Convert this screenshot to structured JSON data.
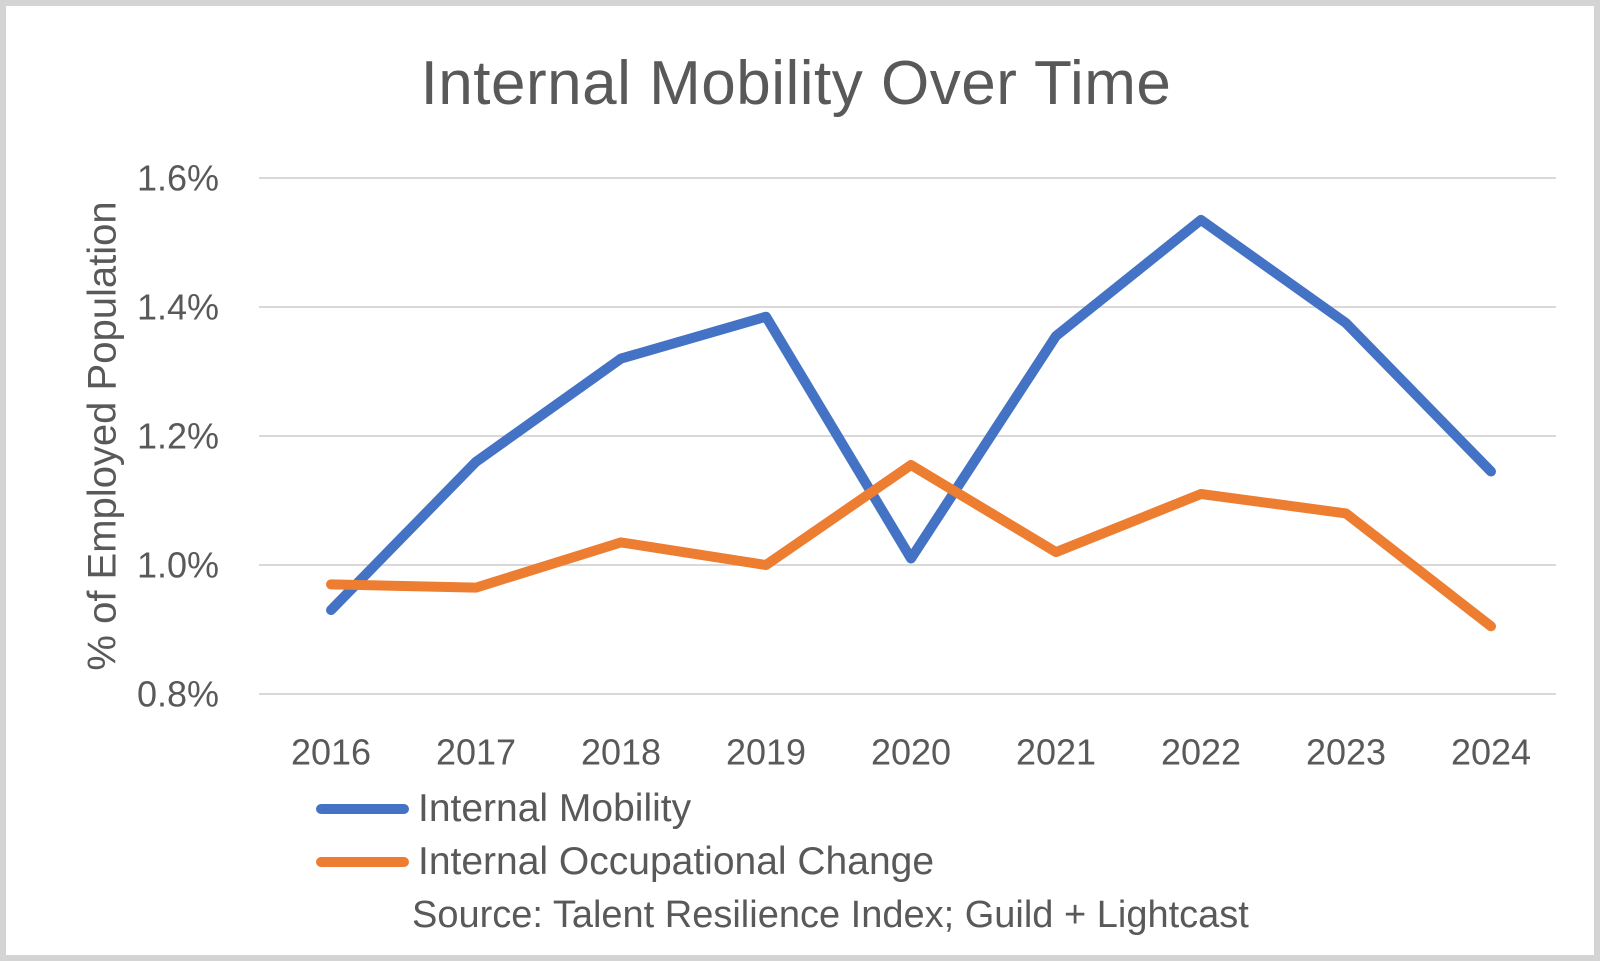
{
  "frame": {
    "background": "#ffffff",
    "border_color": "#d4d4d4"
  },
  "chart_data": {
    "type": "line",
    "title": "Internal Mobility Over Time",
    "ylabel": "% of Employed Population",
    "xlabel": "",
    "categories": [
      "2016",
      "2017",
      "2018",
      "2019",
      "2020",
      "2021",
      "2022",
      "2023",
      "2024"
    ],
    "series": [
      {
        "name": "Internal Mobility",
        "color": "#4472C4",
        "values": [
          0.93,
          1.16,
          1.32,
          1.385,
          1.01,
          1.355,
          1.535,
          1.375,
          1.145
        ]
      },
      {
        "name": "Internal Occupational Change",
        "color": "#ED7D31",
        "values": [
          0.97,
          0.965,
          1.035,
          1.0,
          1.155,
          1.02,
          1.11,
          1.08,
          0.905
        ]
      }
    ],
    "y_axis": {
      "unit": "%",
      "min": 0.8,
      "max": 1.6,
      "tick_labels": [
        "1.6%",
        "1.4%",
        "1.2%",
        "1.0%",
        "0.8%"
      ],
      "tick_values": [
        1.6,
        1.4,
        1.2,
        1.0,
        0.8
      ]
    },
    "grid": "horizontal",
    "gridline_color": "#D9D9D9",
    "text_color": "#595959",
    "legend_position": "bottom-left",
    "source": "Source: Talent Resilience Index; Guild + Lightcast"
  }
}
